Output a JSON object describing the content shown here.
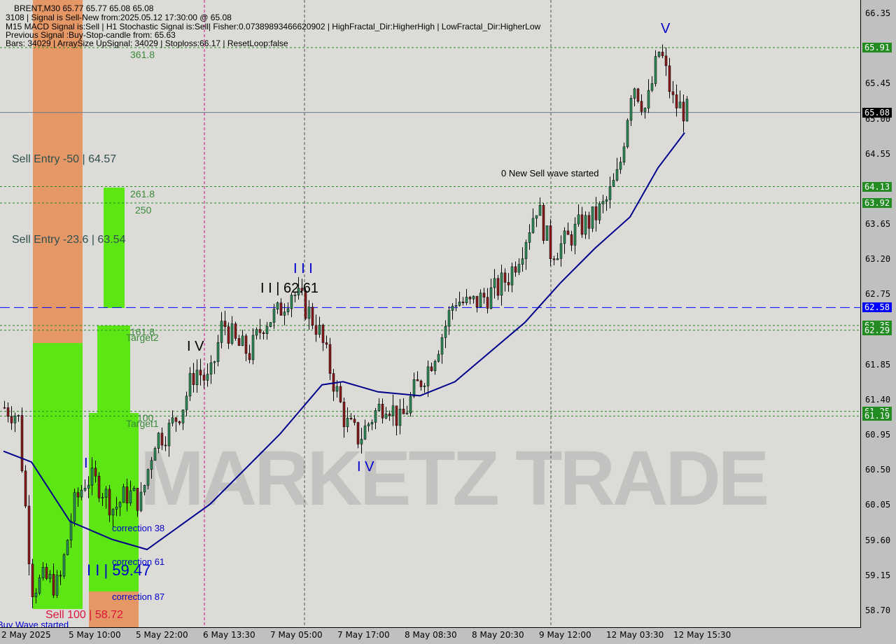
{
  "header": {
    "line1": "BRENT,M30  65.77 65.77 65.08 65.08",
    "line2": "3108 | Signal is Sell-New from:2025.05.12 17:30:00 @ 65.08",
    "line3": "M15 MACD Signal is:Sell | H1 Stochastic Signal is:Sell| Fisher:0.07389893466620902 | HighFractal_Dir:HigherHigh | LowFractal_Dir:HigherLow",
    "line4": "Previous Signal :Buy-Stop-candle from: 65.63",
    "line5": "Bars: 34029 | ArraySize UpSignal: 34029 | Stoploss:66.17 | ResetLoop:false"
  },
  "watermark": "MARKETZ TRADE",
  "chart_data": {
    "type": "candlestick",
    "symbol": "BRENT",
    "timeframe": "M30",
    "ylim": [
      58.55,
      66.5
    ],
    "y_ticks": [
      "66.35",
      "65.45",
      "65.00",
      "64.55",
      "63.65",
      "63.20",
      "62.75",
      "61.85",
      "61.40",
      "60.95",
      "60.50",
      "60.05",
      "59.60",
      "59.15",
      "58.70"
    ],
    "x_ticks": [
      "2 May 2025",
      "5 May 10:00",
      "5 May 22:00",
      "6 May 13:30",
      "7 May 05:00",
      "7 May 17:00",
      "8 May 08:30",
      "8 May 20:30",
      "9 May 12:00",
      "12 May 03:30",
      "12 May 15:30"
    ],
    "close_path": [
      61.3,
      61.2,
      59.0,
      59.1,
      59.0,
      60.0,
      60.4,
      60.3,
      60.0,
      60.2,
      60.1,
      60.9,
      61.0,
      61.3,
      61.8,
      61.6,
      62.4,
      62.1,
      62.0,
      62.4,
      62.5,
      62.8,
      62.6,
      62.3,
      61.7,
      61.1,
      60.9,
      61.2,
      61.4,
      61.1,
      61.5,
      61.8,
      62.2,
      62.7,
      62.6,
      62.7,
      62.8,
      63.0,
      63.4,
      63.9,
      63.3,
      63.4,
      63.6,
      63.7,
      63.9,
      64.3,
      65.5,
      65.1,
      65.9,
      65.2,
      65.08
    ],
    "moving_average": [
      60.74,
      60.6,
      59.84,
      59.61,
      59.48,
      60.06,
      60.96,
      61.59,
      61.63,
      61.5,
      61.45,
      61.63,
      62.39,
      62.89,
      63.34,
      63.74,
      64.37,
      64.82
    ],
    "price_levels": [
      {
        "label": "65.91",
        "value": 65.91,
        "style": "dashed",
        "color": "#228b22"
      },
      {
        "label": "65.08",
        "value": 65.08,
        "style": "solid",
        "color": "#000000"
      },
      {
        "label": "64.13",
        "value": 64.13,
        "style": "dashed",
        "color": "#228b22"
      },
      {
        "label": "63.92",
        "value": 63.92,
        "style": "dashed",
        "color": "#228b22"
      },
      {
        "label": "62.58",
        "value": 62.58,
        "style": "longdash",
        "color": "#0000ff"
      },
      {
        "label": "62.35",
        "value": 62.35,
        "style": "dashed",
        "color": "#228b22"
      },
      {
        "label": "62.29",
        "value": 62.29,
        "style": "dashed",
        "color": "#228b22"
      },
      {
        "label": "61.25",
        "value": 61.25,
        "style": "dashed",
        "color": "#228b22"
      },
      {
        "label": "61.19",
        "value": 61.19,
        "style": "dashed",
        "color": "#228b22"
      }
    ],
    "annotations": {
      "fib3618": "361.8",
      "sell50": "Sell Entry -50 | 64.57",
      "fib2618": "261.8",
      "fib250": "250",
      "sell236": "Sell Entry -23.6 | 63.54",
      "fib1618": "161.8",
      "target2": "Target2",
      "fib100": "100",
      "target1": "Target1",
      "wave4a": "I V",
      "wave2": "I I | 62.61",
      "wave3": "I I I",
      "newsell": "0 New Sell wave started",
      "wave4b": "I V",
      "wave5": "V",
      "wave1": "I",
      "corr38": "correction 38",
      "corr61": "correction 61",
      "wave2b": "I I | 59.47",
      "corr87": "correction 87",
      "sell100": "Sell 100 | 58.72",
      "buywave": "Buy Wave started"
    },
    "colors": {
      "bull": "#2e8b57",
      "bear": "#8b1a1a",
      "ma": "#00008b",
      "green_zone": "#5ce614",
      "orange_zone": "#e59866"
    }
  }
}
